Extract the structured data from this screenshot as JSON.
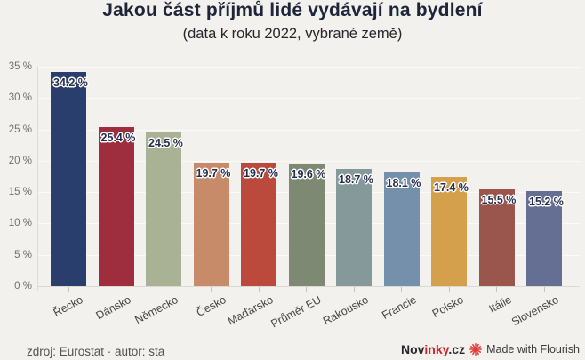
{
  "header": {
    "title": "Jakou část příjmů lidé vydávají na bydlení",
    "subtitle": "(data k roku 2022, vybrané země)"
  },
  "chart_data": {
    "type": "bar",
    "title": "Jakou část příjmů lidé vydávají na bydlení",
    "subtitle": "(data k roku 2022, vybrané země)",
    "categories": [
      "Řecko",
      "Dánsko",
      "Německo",
      "Česko",
      "Maďarsko",
      "Průměr EU",
      "Rakousko",
      "Francie",
      "Polsko",
      "Itálie",
      "Slovensko"
    ],
    "values": [
      34.2,
      25.4,
      24.5,
      19.7,
      19.7,
      19.6,
      18.7,
      18.1,
      17.4,
      15.5,
      15.2
    ],
    "value_labels": [
      "34.2 %",
      "25.4 %",
      "24.5 %",
      "19.7 %",
      "19.7 %",
      "19.6 %",
      "18.7 %",
      "18.1 %",
      "17.4 %",
      "15.5 %",
      "15.2 %"
    ],
    "bar_colors": [
      "#2a3e6d",
      "#9e2d3e",
      "#aab295",
      "#c88b6a",
      "#bc4a3c",
      "#7d8973",
      "#85999b",
      "#7590ab",
      "#d5a04c",
      "#9a564c",
      "#656f94"
    ],
    "xlabel": "",
    "ylabel": "",
    "ylim": [
      0,
      35
    ],
    "ytick_values": [
      0,
      5,
      10,
      15,
      20,
      25,
      30,
      35
    ],
    "ytick_labels": [
      "0 %",
      "5 %",
      "10 %",
      "15 %",
      "20 %",
      "25 %",
      "30 %",
      "35 %"
    ],
    "grid": true,
    "legend": "none",
    "value_label_color": "#272e4c",
    "background_color": "#f2f1ee"
  },
  "footer": {
    "source": "zdroj: Eurostat · autor: sta",
    "brand": {
      "prefix": "Nov",
      "highlight": "inky",
      "suffix": ".cz"
    },
    "attribution": "Made with Flourish",
    "flourish_icon_color": "#e23b35"
  }
}
